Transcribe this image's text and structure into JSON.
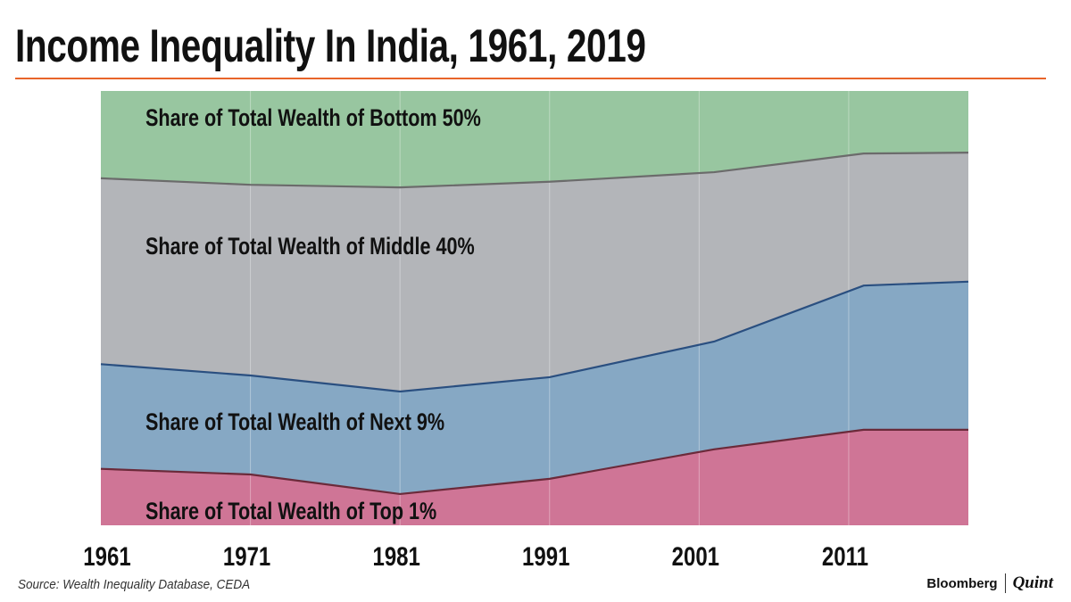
{
  "title": "Income Inequality In India, 1961, 2019",
  "source": "Source: Wealth Inequality Database, CEDA",
  "logo": {
    "left": "Bloomberg",
    "right": "Quint"
  },
  "chart_data": {
    "type": "area",
    "stacked": true,
    "normalized": true,
    "x": [
      1961,
      1971,
      1981,
      1991,
      2002,
      2012,
      2019
    ],
    "xlim": [
      1961,
      2019
    ],
    "ylim": [
      0,
      100
    ],
    "x_ticks": [
      "1961",
      "1971",
      "1981",
      "1991",
      "2001",
      "2011"
    ],
    "x_tick_values": [
      1961,
      1971,
      1981,
      1991,
      2001,
      2011
    ],
    "grid": "vertical",
    "series": [
      {
        "name": "Share of Total Wealth of Top 1%",
        "values": [
          13.0,
          11.7,
          7.2,
          10.7,
          17.5,
          22.0,
          22.0
        ],
        "color": "#cf7596",
        "line": "#6b2a3a"
      },
      {
        "name": "Share of Total Wealth of Next 9%",
        "values": [
          24.1,
          22.8,
          23.6,
          23.4,
          24.8,
          33.2,
          34.1
        ],
        "color": "#86a8c4",
        "line": "#2a4f80"
      },
      {
        "name": "Share of Total Wealth of Middle 40%",
        "values": [
          42.8,
          43.9,
          47.0,
          45.0,
          39.0,
          30.4,
          29.7
        ],
        "color": "#b3b5b9",
        "line": "#6b6b6b"
      },
      {
        "name": "Share of Total Wealth of Bottom 50%",
        "values": [
          20.1,
          21.6,
          22.2,
          20.9,
          18.7,
          14.4,
          14.2
        ],
        "color": "#98c6a0",
        "line": null
      }
    ]
  }
}
